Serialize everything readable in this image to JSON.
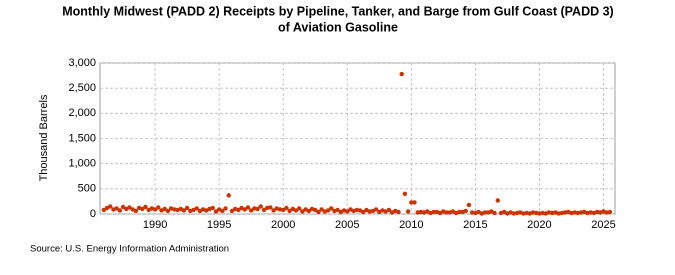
{
  "chart_data": {
    "type": "scatter",
    "title": [
      "Monthly Midwest (PADD 2) Receipts by Pipeline, Tanker, and Barge from Gulf Coast (PADD 3)",
      "of Aviation Gasoline"
    ],
    "y_label": "Thousand Barrels",
    "source": "Source: U.S. Energy Information Administration",
    "color": "#cc3300",
    "grid": true,
    "xlim": [
      1985.7,
      2025.9
    ],
    "ylim": [
      0,
      3000
    ],
    "xticks": [
      1990,
      1995,
      2000,
      2005,
      2010,
      2015,
      2020,
      2025
    ],
    "yticks": [
      0,
      500,
      {
        "value": 1000,
        "label": "1,000"
      },
      {
        "value": 1500,
        "label": "1,500"
      },
      {
        "value": 2000,
        "label": "2,000"
      },
      {
        "value": 2500,
        "label": "2,500"
      },
      {
        "value": 3000,
        "label": "3,000"
      }
    ],
    "x": [
      1986,
      1986.25,
      1986.5,
      1986.75,
      1987,
      1987.25,
      1987.5,
      1987.75,
      1988,
      1988.25,
      1988.5,
      1988.75,
      1989,
      1989.25,
      1989.5,
      1989.75,
      1990,
      1990.25,
      1990.5,
      1990.75,
      1991,
      1991.25,
      1991.5,
      1991.75,
      1992,
      1992.25,
      1992.5,
      1992.75,
      1993,
      1993.25,
      1993.5,
      1993.75,
      1994,
      1994.25,
      1994.5,
      1994.75,
      1995,
      1995.25,
      1995.5,
      1995.75,
      1996,
      1996.25,
      1996.5,
      1996.75,
      1997,
      1997.25,
      1997.5,
      1997.75,
      1998,
      1998.25,
      1998.5,
      1998.75,
      1999,
      1999.25,
      1999.5,
      1999.75,
      2000,
      2000.25,
      2000.5,
      2000.75,
      2001,
      2001.25,
      2001.5,
      2001.75,
      2002,
      2002.25,
      2002.5,
      2002.75,
      2003,
      2003.25,
      2003.5,
      2003.75,
      2004,
      2004.25,
      2004.5,
      2004.75,
      2005,
      2005.25,
      2005.5,
      2005.75,
      2006,
      2006.25,
      2006.5,
      2006.75,
      2007,
      2007.25,
      2007.5,
      2007.75,
      2008,
      2008.25,
      2008.5,
      2008.75,
      2009,
      2009.25,
      2009.5,
      2009.75,
      2010,
      2010.25,
      2010.5,
      2010.75,
      2011,
      2011.25,
      2011.5,
      2011.75,
      2012,
      2012.25,
      2012.5,
      2012.75,
      2013,
      2013.25,
      2013.5,
      2013.75,
      2014,
      2014.25,
      2014.5,
      2014.75,
      2015,
      2015.25,
      2015.5,
      2015.75,
      2016,
      2016.25,
      2016.5,
      2016.75,
      2017,
      2017.25,
      2017.5,
      2017.75,
      2018,
      2018.25,
      2018.5,
      2018.75,
      2019,
      2019.25,
      2019.5,
      2019.75,
      2020,
      2020.25,
      2020.5,
      2020.75,
      2021,
      2021.25,
      2021.5,
      2021.75,
      2022,
      2022.25,
      2022.5,
      2022.75,
      2023,
      2023.25,
      2023.5,
      2023.75,
      2024,
      2024.25,
      2024.5,
      2024.75,
      2025,
      2025.25,
      2025.5
    ],
    "values": [
      80,
      120,
      150,
      90,
      110,
      70,
      140,
      100,
      130,
      90,
      60,
      120,
      100,
      140,
      80,
      110,
      90,
      130,
      70,
      100,
      60,
      110,
      90,
      80,
      100,
      70,
      120,
      60,
      80,
      110,
      60,
      90,
      70,
      100,
      120,
      50,
      90,
      60,
      110,
      370,
      60,
      100,
      80,
      120,
      90,
      130,
      70,
      110,
      100,
      150,
      80,
      120,
      130,
      70,
      110,
      90,
      80,
      120,
      60,
      100,
      70,
      110,
      50,
      90,
      60,
      100,
      80,
      40,
      90,
      50,
      70,
      110,
      60,
      80,
      40,
      70,
      50,
      90,
      60,
      80,
      70,
      40,
      80,
      50,
      60,
      90,
      40,
      70,
      50,
      80,
      30,
      60,
      40,
      2780,
      400,
      50,
      230,
      230,
      30,
      40,
      30,
      50,
      20,
      40,
      40,
      20,
      50,
      30,
      30,
      50,
      20,
      40,
      40,
      60,
      180,
      30,
      20,
      40,
      10,
      30,
      30,
      50,
      20,
      270,
      20,
      40,
      10,
      30,
      10,
      20,
      30,
      10,
      20,
      10,
      30,
      20,
      10,
      20,
      10,
      30,
      20,
      30,
      10,
      20,
      30,
      40,
      20,
      30,
      20,
      30,
      40,
      20,
      30,
      20,
      40,
      30,
      50,
      30,
      40
    ]
  }
}
